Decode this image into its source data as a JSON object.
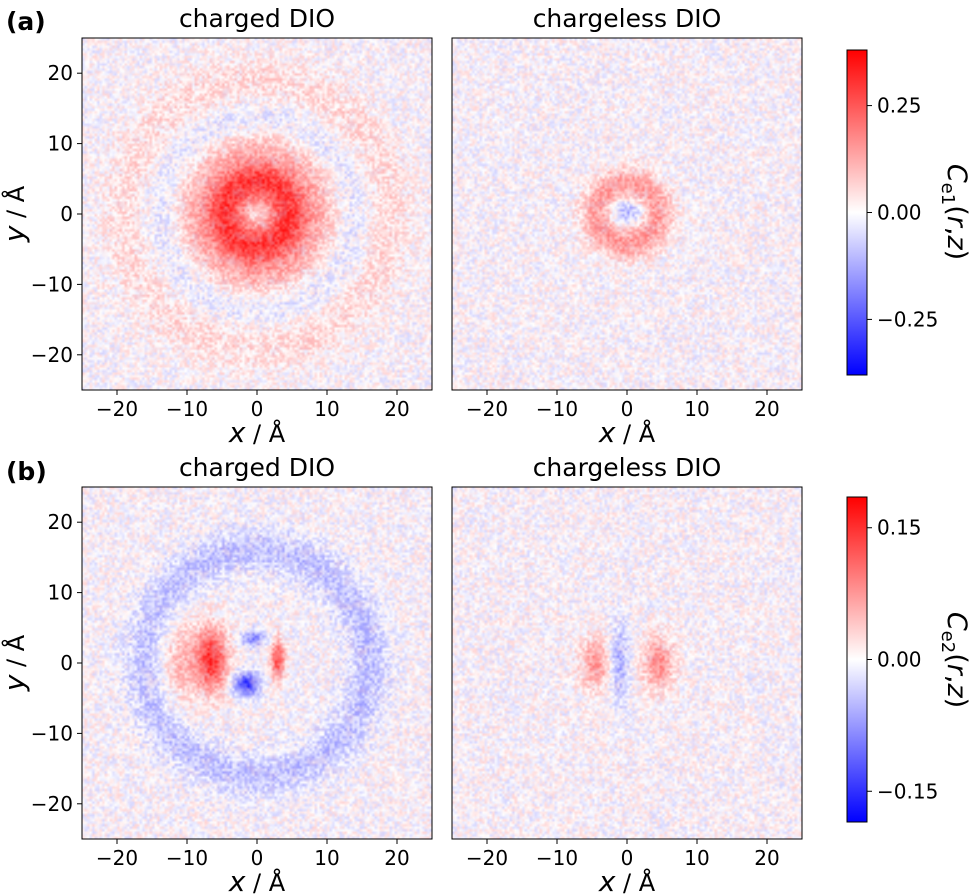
{
  "figure": {
    "panels": [
      {
        "label": "(a)",
        "colorbar_label": "C_e1(r,z)"
      },
      {
        "label": "(b)",
        "colorbar_label": "C_e2(r,z)"
      }
    ]
  },
  "chart_data": [
    {
      "type": "heatmap",
      "panel": "(a)",
      "title": "charged DIO",
      "xlabel": "x / Å",
      "ylabel": "y / Å",
      "xlim": [
        -25,
        25
      ],
      "ylim": [
        -25,
        25
      ],
      "xticks": [
        "−20",
        "−10",
        "0",
        "10",
        "20"
      ],
      "yticks": [
        "−20",
        "−10",
        "0",
        "10",
        "20"
      ],
      "colormap": "bwr",
      "clim": [
        -0.38,
        0.38
      ],
      "features": [
        {
          "shape": "ring",
          "center": [
            0,
            0
          ],
          "radius": 4.5,
          "width": 3.2,
          "value": 0.3
        },
        {
          "shape": "ring",
          "center": [
            0,
            0
          ],
          "radius": 9.5,
          "width": 2.8,
          "value": 0.08
        },
        {
          "shape": "ring",
          "center": [
            0,
            0
          ],
          "radius": 13.5,
          "width": 2.5,
          "value": -0.04
        },
        {
          "shape": "ring",
          "center": [
            0,
            0
          ],
          "radius": 19,
          "width": 3.5,
          "value": 0.05
        }
      ]
    },
    {
      "type": "heatmap",
      "panel": "(a)",
      "title": "chargeless DIO",
      "xlabel": "x / Å",
      "ylabel": "",
      "xlim": [
        -25,
        25
      ],
      "ylim": [
        -25,
        25
      ],
      "xticks": [
        "−20",
        "−10",
        "0",
        "10",
        "20"
      ],
      "yticks": [],
      "colormap": "bwr",
      "clim": [
        -0.38,
        0.38
      ],
      "features": [
        {
          "shape": "blob",
          "center": [
            0,
            0.5
          ],
          "sx": 2.5,
          "sy": 1.8,
          "value": -0.12
        },
        {
          "shape": "ring",
          "center": [
            0,
            0
          ],
          "radius": 4.2,
          "width": 2.4,
          "value": 0.15
        }
      ]
    },
    {
      "type": "heatmap",
      "panel": "(b)",
      "title": "charged DIO",
      "xlabel": "x / Å",
      "ylabel": "y / Å",
      "xlim": [
        -25,
        25
      ],
      "ylim": [
        -25,
        25
      ],
      "xticks": [
        "−20",
        "−10",
        "0",
        "10",
        "20"
      ],
      "yticks": [
        "−20",
        "−10",
        "0",
        "10",
        "20"
      ],
      "colormap": "bwr",
      "clim": [
        -0.185,
        0.185
      ],
      "features": [
        {
          "shape": "blob",
          "center": [
            -6.5,
            0.5
          ],
          "sx": 2.2,
          "sy": 4.5,
          "value": 0.15
        },
        {
          "shape": "blob",
          "center": [
            3,
            0.5
          ],
          "sx": 1.0,
          "sy": 2.8,
          "value": 0.13
        },
        {
          "shape": "blob",
          "center": [
            -1.5,
            -3
          ],
          "sx": 1.8,
          "sy": 1.6,
          "value": -0.15
        },
        {
          "shape": "blob",
          "center": [
            -0.5,
            3.5
          ],
          "sx": 1.6,
          "sy": 1.2,
          "value": -0.09
        },
        {
          "shape": "blob",
          "center": [
            -11,
            0
          ],
          "sx": 2.8,
          "sy": 6,
          "value": 0.05
        },
        {
          "shape": "ring",
          "center": [
            0,
            0
          ],
          "radius": 16,
          "width": 3,
          "value": -0.045
        }
      ]
    },
    {
      "type": "heatmap",
      "panel": "(b)",
      "title": "chargeless DIO",
      "xlabel": "x / Å",
      "ylabel": "",
      "xlim": [
        -25,
        25
      ],
      "ylim": [
        -25,
        25
      ],
      "xticks": [
        "−20",
        "−10",
        "0",
        "10",
        "20"
      ],
      "yticks": [],
      "colormap": "bwr",
      "clim": [
        -0.185,
        0.185
      ],
      "features": [
        {
          "shape": "blob",
          "center": [
            -4.5,
            0
          ],
          "sx": 2.2,
          "sy": 3.8,
          "value": 0.075
        },
        {
          "shape": "blob",
          "center": [
            4.5,
            0
          ],
          "sx": 2.2,
          "sy": 3.8,
          "value": 0.085
        },
        {
          "shape": "blob",
          "center": [
            -1.2,
            0
          ],
          "sx": 1.4,
          "sy": 5.5,
          "value": -0.065
        }
      ]
    }
  ],
  "colorbars": [
    {
      "panel": "(a)",
      "ticks": [
        "0.25",
        "0.00",
        "−0.25"
      ],
      "tick_values": [
        0.25,
        0,
        -0.25
      ],
      "range": [
        -0.38,
        0.38
      ],
      "top_color": "#ff0000",
      "bottom_color": "#0000ff"
    },
    {
      "panel": "(b)",
      "ticks": [
        "0.15",
        "0.00",
        "−0.15"
      ],
      "tick_values": [
        0.15,
        0,
        -0.15
      ],
      "range": [
        -0.185,
        0.185
      ],
      "top_color": "#ff0000",
      "bottom_color": "#0000ff"
    }
  ]
}
